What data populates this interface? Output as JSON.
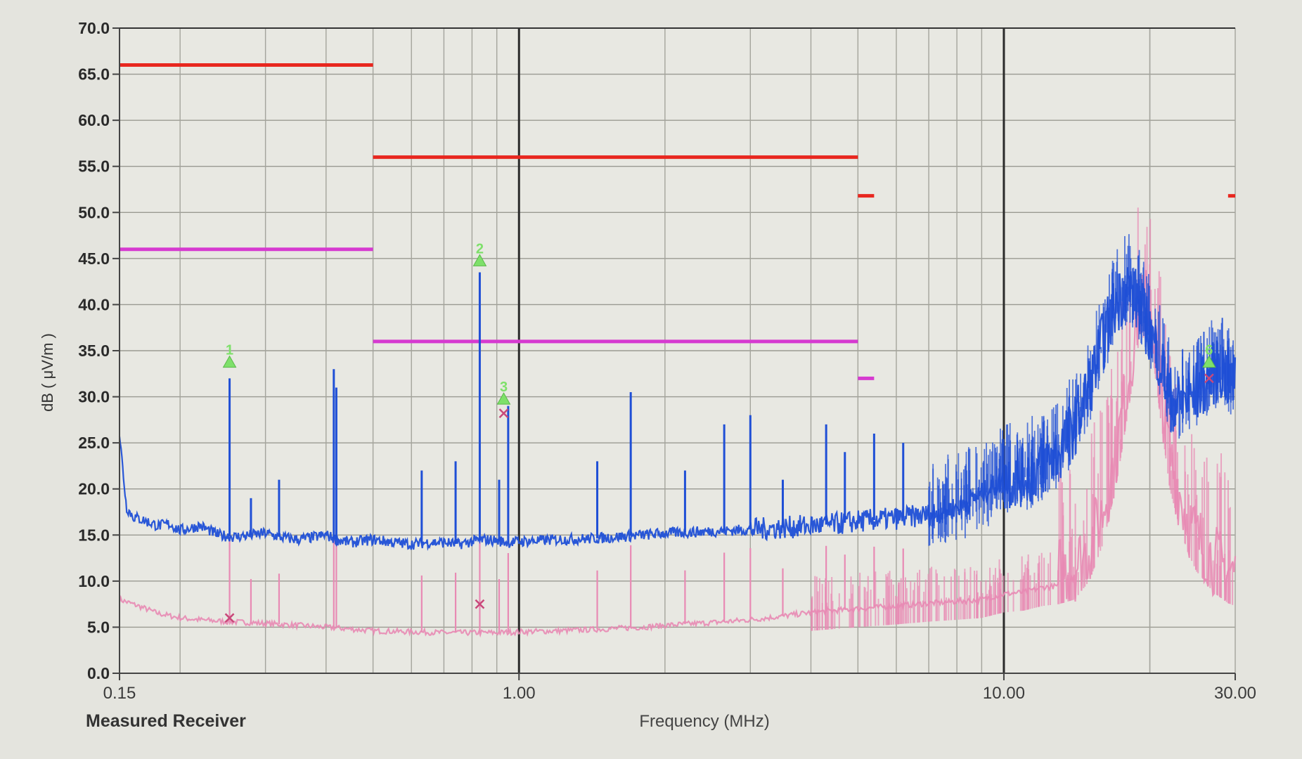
{
  "footer": {
    "receiver_label": "Measured Receiver"
  },
  "chart_data": {
    "type": "line",
    "title": "",
    "xlabel": "Frequency (MHz)",
    "ylabel": "dB ( μV/m )",
    "x_scale": "log",
    "xlim": [
      0.15,
      30
    ],
    "ylim": [
      0,
      70
    ],
    "grid": true,
    "y_ticks": [
      "0.0",
      "5.0",
      "10.0",
      "15.0",
      "20.0",
      "25.0",
      "30.0",
      "35.0",
      "40.0",
      "45.0",
      "50.0",
      "55.0",
      "60.0",
      "65.0",
      "70.0"
    ],
    "x_ticks": [
      {
        "value": 0.15,
        "label": "0.15"
      },
      {
        "value": 1.0,
        "label": "1.00"
      },
      {
        "value": 10.0,
        "label": "10.00"
      },
      {
        "value": 30.0,
        "label": "30.00"
      }
    ],
    "colors": {
      "peak_trace": "#1f4fd6",
      "average_trace": "#e88ab4",
      "qp_limit": "#e8271f",
      "avg_limit": "#d63ad0",
      "marker": "#7ee06a"
    },
    "limit_lines": [
      {
        "type": "qp",
        "x": [
          0.15,
          0.5
        ],
        "y": [
          66,
          66
        ]
      },
      {
        "type": "qp",
        "x": [
          0.5,
          5
        ],
        "y": [
          56,
          56
        ]
      },
      {
        "type": "qp",
        "x": [
          5.0,
          5.4
        ],
        "y": [
          51.8,
          51.8
        ]
      },
      {
        "type": "qp",
        "x": [
          29.0,
          30.0
        ],
        "y": [
          51.8,
          51.8
        ]
      },
      {
        "type": "avg",
        "x": [
          0.15,
          0.5
        ],
        "y": [
          46,
          46
        ]
      },
      {
        "type": "avg",
        "x": [
          0.5,
          5
        ],
        "y": [
          36,
          36
        ]
      },
      {
        "type": "avg",
        "x": [
          5.0,
          5.4
        ],
        "y": [
          32,
          32
        ]
      }
    ],
    "series": [
      {
        "role": "peak",
        "x": [
          0.15,
          0.155,
          0.16,
          0.17,
          0.18,
          0.19,
          0.2,
          0.22,
          0.24,
          0.26,
          0.28,
          0.3,
          0.32,
          0.35,
          0.38,
          0.4,
          0.42,
          0.45,
          0.5,
          0.55,
          0.6,
          0.65,
          0.7,
          0.75,
          0.8,
          0.85,
          0.9,
          0.95,
          1.0,
          1.1,
          1.2,
          1.4,
          1.6,
          1.8,
          2.0,
          2.5,
          3.0,
          3.5,
          4.0,
          4.5,
          5.0,
          6.0,
          7.0,
          8.0,
          9.0,
          10.0,
          11.0,
          12.0,
          13.0,
          14.0,
          15.0,
          16.0,
          17.0,
          18.0,
          19.0,
          20.0,
          21.0,
          22.0,
          23.0,
          24.0,
          25.0,
          26.0,
          27.0,
          28.0,
          29.0,
          30.0
        ],
        "y": [
          26,
          18,
          17,
          16.5,
          16,
          16.2,
          15.5,
          16,
          15,
          14.8,
          15,
          15.2,
          14.8,
          14.5,
          14.8,
          15,
          14.5,
          14.2,
          14.5,
          14.2,
          14,
          14.2,
          14.2,
          14,
          14.3,
          14.5,
          14.4,
          14.2,
          14.3,
          14.4,
          14.5,
          14.6,
          14.8,
          15,
          15.2,
          15.4,
          15.6,
          15.8,
          16,
          16.2,
          16.5,
          16.8,
          17.2,
          18,
          19.5,
          21,
          21.5,
          22.5,
          24,
          27,
          31,
          36,
          40,
          42,
          40,
          37,
          34,
          30,
          29,
          30,
          30.5,
          31.5,
          32.5,
          33,
          32,
          31.5
        ]
      },
      {
        "role": "average",
        "x": [
          0.15,
          0.16,
          0.17,
          0.18,
          0.2,
          0.22,
          0.25,
          0.28,
          0.3,
          0.35,
          0.4,
          0.45,
          0.5,
          0.6,
          0.7,
          0.8,
          0.9,
          1.0,
          1.2,
          1.5,
          1.8,
          2.0,
          2.5,
          3.0,
          3.5,
          4.0,
          5.0,
          6.0,
          7.0,
          8.0,
          9.0,
          10.0,
          11.0,
          12.0,
          13.0,
          14.0,
          15.0,
          16.0,
          17.0,
          18.0,
          19.0,
          20.0,
          21.0,
          22.0,
          23.0,
          24.0,
          25.0,
          26.0,
          27.0,
          28.0,
          29.0,
          30.0
        ],
        "y": [
          8,
          7.5,
          7,
          6.5,
          6,
          5.8,
          5.6,
          5.5,
          5.4,
          5.2,
          5.0,
          4.8,
          4.6,
          4.5,
          4.4,
          4.4,
          4.4,
          4.5,
          4.6,
          4.8,
          5.0,
          5.2,
          5.5,
          5.8,
          6.2,
          6.6,
          7.0,
          7.3,
          7.6,
          7.8,
          8.0,
          8.6,
          8.8,
          9.3,
          9.5,
          10,
          12,
          16,
          22,
          30,
          38,
          39,
          30,
          22,
          18,
          15,
          13,
          12,
          10.8,
          10.2,
          9.6,
          9.3
        ]
      }
    ],
    "peak_spikes": [
      {
        "x": 0.253,
        "y": 32
      },
      {
        "x": 0.28,
        "y": 19
      },
      {
        "x": 0.32,
        "y": 21
      },
      {
        "x": 0.415,
        "y": 33
      },
      {
        "x": 0.42,
        "y": 31
      },
      {
        "x": 0.63,
        "y": 22
      },
      {
        "x": 0.74,
        "y": 23
      },
      {
        "x": 0.83,
        "y": 43.5
      },
      {
        "x": 0.91,
        "y": 21
      },
      {
        "x": 0.95,
        "y": 29
      },
      {
        "x": 1.45,
        "y": 23
      },
      {
        "x": 1.7,
        "y": 30.5
      },
      {
        "x": 2.2,
        "y": 22
      },
      {
        "x": 2.65,
        "y": 27
      },
      {
        "x": 3.0,
        "y": 28
      },
      {
        "x": 3.5,
        "y": 21
      },
      {
        "x": 4.3,
        "y": 27
      },
      {
        "x": 4.7,
        "y": 24
      },
      {
        "x": 5.4,
        "y": 26
      },
      {
        "x": 6.2,
        "y": 25
      }
    ],
    "markers": [
      {
        "label": "1",
        "x": 0.253,
        "y": 33.5
      },
      {
        "label": "2",
        "x": 0.83,
        "y": 44.5
      },
      {
        "label": "3",
        "x": 0.93,
        "y": 29.5
      },
      {
        "label": "6",
        "x": 26.5,
        "y": 33.5
      }
    ],
    "average_markers": [
      {
        "x": 0.253,
        "y": 6.0
      },
      {
        "x": 0.83,
        "y": 7.5
      },
      {
        "x": 0.93,
        "y": 28.2
      },
      {
        "x": 26.5,
        "y": 32.0
      }
    ]
  }
}
